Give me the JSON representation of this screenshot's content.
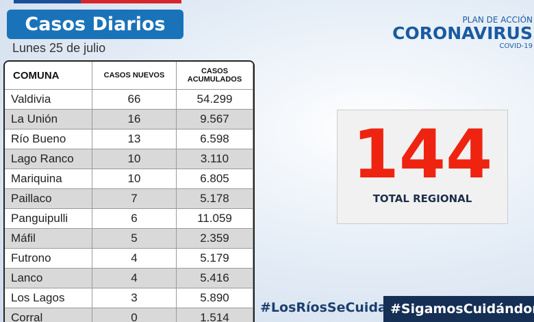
{
  "header": {
    "title": "Casos Diarios",
    "date": "Lunes 25 de julio"
  },
  "logo": {
    "line1": "PLAN DE ACCIÓN",
    "line2": "CORONAVIRUS",
    "line3": "COVID-19"
  },
  "table": {
    "columns": [
      "COMUNA",
      "CASOS NUEVOS",
      "CASOS ACUMULADOS"
    ],
    "rows": [
      [
        "Valdivia",
        "66",
        "54.299"
      ],
      [
        "La Unión",
        "16",
        "9.567"
      ],
      [
        "Río Bueno",
        "13",
        "6.598"
      ],
      [
        "Lago Ranco",
        "10",
        "3.110"
      ],
      [
        "Mariquina",
        "10",
        "6.805"
      ],
      [
        "Paillaco",
        "7",
        "5.178"
      ],
      [
        "Panguipulli",
        "6",
        "11.059"
      ],
      [
        "Máfil",
        "5",
        "2.359"
      ],
      [
        "Futrono",
        "4",
        "5.179"
      ],
      [
        "Lanco",
        "4",
        "5.416"
      ],
      [
        "Los Lagos",
        "3",
        "5.890"
      ],
      [
        "Corral",
        "0",
        "1.514"
      ]
    ]
  },
  "total": {
    "value": "144",
    "label": "TOTAL REGIONAL"
  },
  "hashtags": [
    "#LosRíosSeCuida",
    "#SigamosCuidándonos"
  ]
}
